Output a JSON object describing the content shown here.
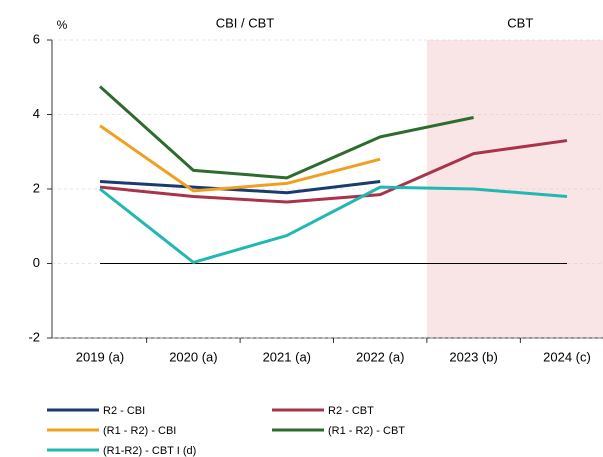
{
  "chart_data": {
    "type": "line",
    "y_unit": "%",
    "annotations": [
      "CBI / CBT",
      "CBT"
    ],
    "categories": [
      "2019 (a)",
      "2020 (a)",
      "2021 (a)",
      "2022 (a)",
      "2023 (b)",
      "2024 (c)"
    ],
    "series": [
      {
        "name": "R2 - CBI",
        "color": "#1b3a6e",
        "values": [
          2.2,
          2.05,
          1.9,
          2.2,
          null,
          null
        ]
      },
      {
        "name": "R2 - CBT",
        "color": "#a8334a",
        "values": [
          2.05,
          1.8,
          1.65,
          1.85,
          2.95,
          3.3
        ]
      },
      {
        "name": "(R1 - R2) - CBI",
        "color": "#f0a020",
        "values": [
          3.7,
          1.95,
          2.15,
          2.8,
          null,
          null
        ]
      },
      {
        "name": "(R1 - R2) - CBT",
        "color": "#2e6b2e",
        "values": [
          4.75,
          2.5,
          2.3,
          3.4,
          3.92,
          null
        ]
      },
      {
        "name": "(R1-R2) - CBT I (d)",
        "color": "#22b8b2",
        "values": [
          2.0,
          0.03,
          0.75,
          2.05,
          2.0,
          1.8
        ]
      }
    ],
    "ylim": [
      -2,
      6
    ],
    "yticks": [
      -2,
      0,
      2,
      4,
      6
    ],
    "grid": true
  }
}
